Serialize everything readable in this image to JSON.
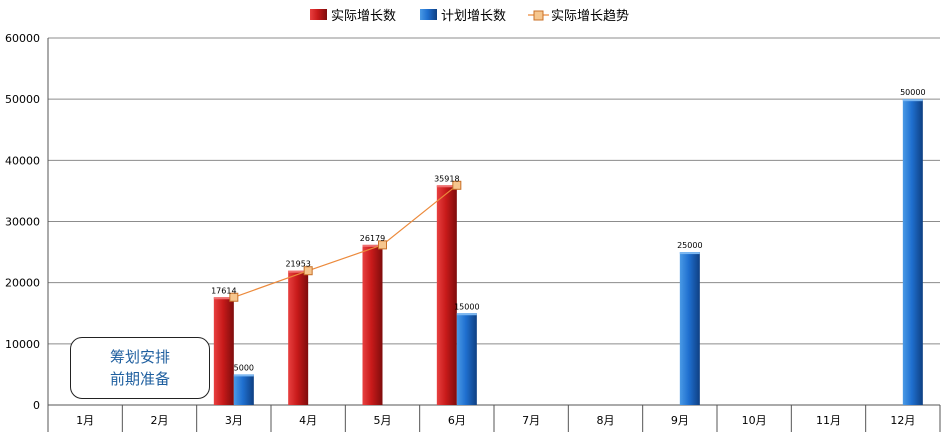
{
  "chart_data": {
    "type": "bar",
    "categories": [
      "1月",
      "2月",
      "3月",
      "4月",
      "5月",
      "6月",
      "7月",
      "8月",
      "9月",
      "10月",
      "11月",
      "12月"
    ],
    "series": [
      {
        "name": "实际增长数",
        "type": "bar",
        "color": "#d42020",
        "values": [
          null,
          null,
          17614,
          21953,
          26179,
          35918,
          null,
          null,
          null,
          null,
          null,
          null
        ]
      },
      {
        "name": "计划增长数",
        "type": "bar",
        "color": "#1f6fcf",
        "values": [
          null,
          null,
          5000,
          null,
          null,
          15000,
          null,
          null,
          25000,
          null,
          null,
          50000
        ]
      },
      {
        "name": "实际增长趋势",
        "type": "line",
        "color": "#ec8a3c",
        "values": [
          null,
          null,
          17614,
          21953,
          26179,
          35918,
          null,
          null,
          null,
          null,
          null,
          null
        ]
      }
    ],
    "ylim": [
      0,
      60000
    ],
    "yticks": [
      0,
      10000,
      20000,
      30000,
      40000,
      50000,
      60000
    ],
    "grid": true,
    "legend": "top-center"
  },
  "annotation": {
    "line1": "筹划安排",
    "line2": "前期准备"
  }
}
